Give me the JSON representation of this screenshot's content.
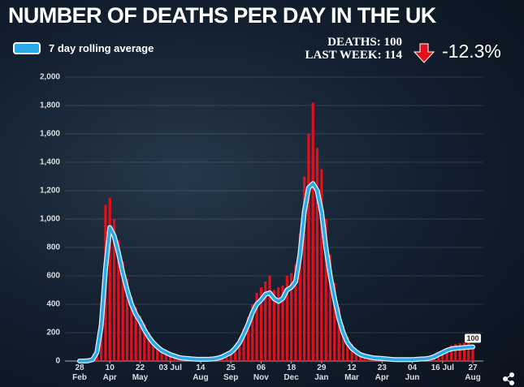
{
  "chart_data": {
    "type": "bar",
    "title": "NUMBER OF DEATHS PER DAY IN THE UK",
    "summary": {
      "deaths": "DEATHS: 100",
      "last_week": "LAST WEEK: 114",
      "change": "-12.3%"
    },
    "categories": [
      "28 Feb",
      null,
      null,
      null,
      null,
      null,
      null,
      "10 Apr",
      null,
      null,
      null,
      null,
      null,
      null,
      "22 May",
      null,
      null,
      null,
      null,
      null,
      null,
      "03 Jul",
      null,
      null,
      null,
      null,
      null,
      null,
      "14 Aug",
      null,
      null,
      null,
      null,
      null,
      null,
      "25 Sep",
      null,
      null,
      null,
      null,
      null,
      null,
      "06 Nov",
      null,
      null,
      null,
      null,
      null,
      null,
      "18 Dec",
      null,
      null,
      null,
      null,
      null,
      null,
      "29 Jan",
      null,
      null,
      null,
      null,
      null,
      null,
      "12 Mar",
      null,
      null,
      null,
      null,
      null,
      null,
      "23 Apr",
      null,
      null,
      null,
      null,
      null,
      null,
      "04 Jun",
      null,
      null,
      null,
      null,
      null,
      null,
      "16 Jul",
      null,
      null,
      null,
      null,
      null,
      null,
      "27 Aug"
    ],
    "series": [
      {
        "type": "bar",
        "color": "#e3101b",
        "values": [
          0,
          0,
          3,
          15,
          90,
          350,
          1100,
          1150,
          1000,
          850,
          700,
          580,
          450,
          380,
          320,
          260,
          200,
          150,
          120,
          90,
          70,
          55,
          40,
          30,
          25,
          20,
          18,
          16,
          14,
          14,
          15,
          18,
          25,
          35,
          55,
          70,
          110,
          160,
          230,
          310,
          400,
          480,
          520,
          560,
          600,
          500,
          520,
          530,
          600,
          620,
          680,
          900,
          1300,
          1600,
          1820,
          1500,
          1350,
          1000,
          750,
          550,
          380,
          250,
          170,
          120,
          80,
          55,
          40,
          32,
          28,
          25,
          22,
          18,
          15,
          14,
          13,
          12,
          12,
          12,
          14,
          17,
          20,
          25,
          40,
          55,
          75,
          90,
          110,
          120,
          125,
          130,
          135,
          100
        ]
      },
      {
        "type": "line",
        "name": "7 day rolling average",
        "color": "#2aa8e8",
        "values": [
          0,
          0,
          2,
          10,
          60,
          250,
          650,
          940,
          880,
          760,
          620,
          500,
          400,
          330,
          280,
          220,
          170,
          130,
          100,
          75,
          60,
          45,
          35,
          25,
          20,
          18,
          15,
          13,
          12,
          12,
          13,
          15,
          20,
          30,
          45,
          60,
          90,
          130,
          190,
          260,
          340,
          400,
          430,
          470,
          480,
          440,
          420,
          440,
          500,
          520,
          560,
          750,
          1050,
          1220,
          1250,
          1200,
          1050,
          800,
          600,
          440,
          300,
          200,
          130,
          90,
          65,
          45,
          35,
          28,
          22,
          20,
          18,
          15,
          12,
          10,
          10,
          10,
          10,
          10,
          12,
          14,
          16,
          20,
          30,
          45,
          60,
          75,
          85,
          90,
          92,
          95,
          98,
          100
        ],
        "value_labels": [
          null,
          null,
          null,
          null,
          null,
          null,
          null,
          null,
          null,
          null,
          null,
          null,
          null,
          null,
          null,
          null,
          null,
          null,
          null,
          null,
          null,
          null,
          null,
          null,
          null,
          null,
          null,
          null,
          null,
          null,
          null,
          null,
          null,
          null,
          null,
          null,
          null,
          null,
          null,
          null,
          null,
          null,
          null,
          null,
          null,
          null,
          null,
          null,
          null,
          null,
          null,
          null,
          null,
          null,
          null,
          null,
          null,
          null,
          null,
          null,
          null,
          null,
          null,
          null,
          null,
          null,
          null,
          null,
          null,
          null,
          null,
          null,
          null,
          null,
          null,
          null,
          null,
          null,
          null,
          null,
          null,
          null,
          null,
          null,
          null,
          null,
          null,
          null,
          null,
          null,
          null,
          "100"
        ]
      }
    ],
    "ylim": [
      0,
      2000
    ],
    "yticks": [
      0,
      200,
      400,
      600,
      800,
      {
        "value": 1000,
        "label": "1,000"
      },
      {
        "value": 1200,
        "label": "1,200"
      },
      {
        "value": 1400,
        "label": "1,400"
      },
      {
        "value": 1600,
        "label": "1,600"
      },
      {
        "value": 1800,
        "label": "1,800"
      },
      {
        "value": 2000,
        "label": "2,000"
      }
    ],
    "grid": true,
    "legend": "top-left"
  }
}
